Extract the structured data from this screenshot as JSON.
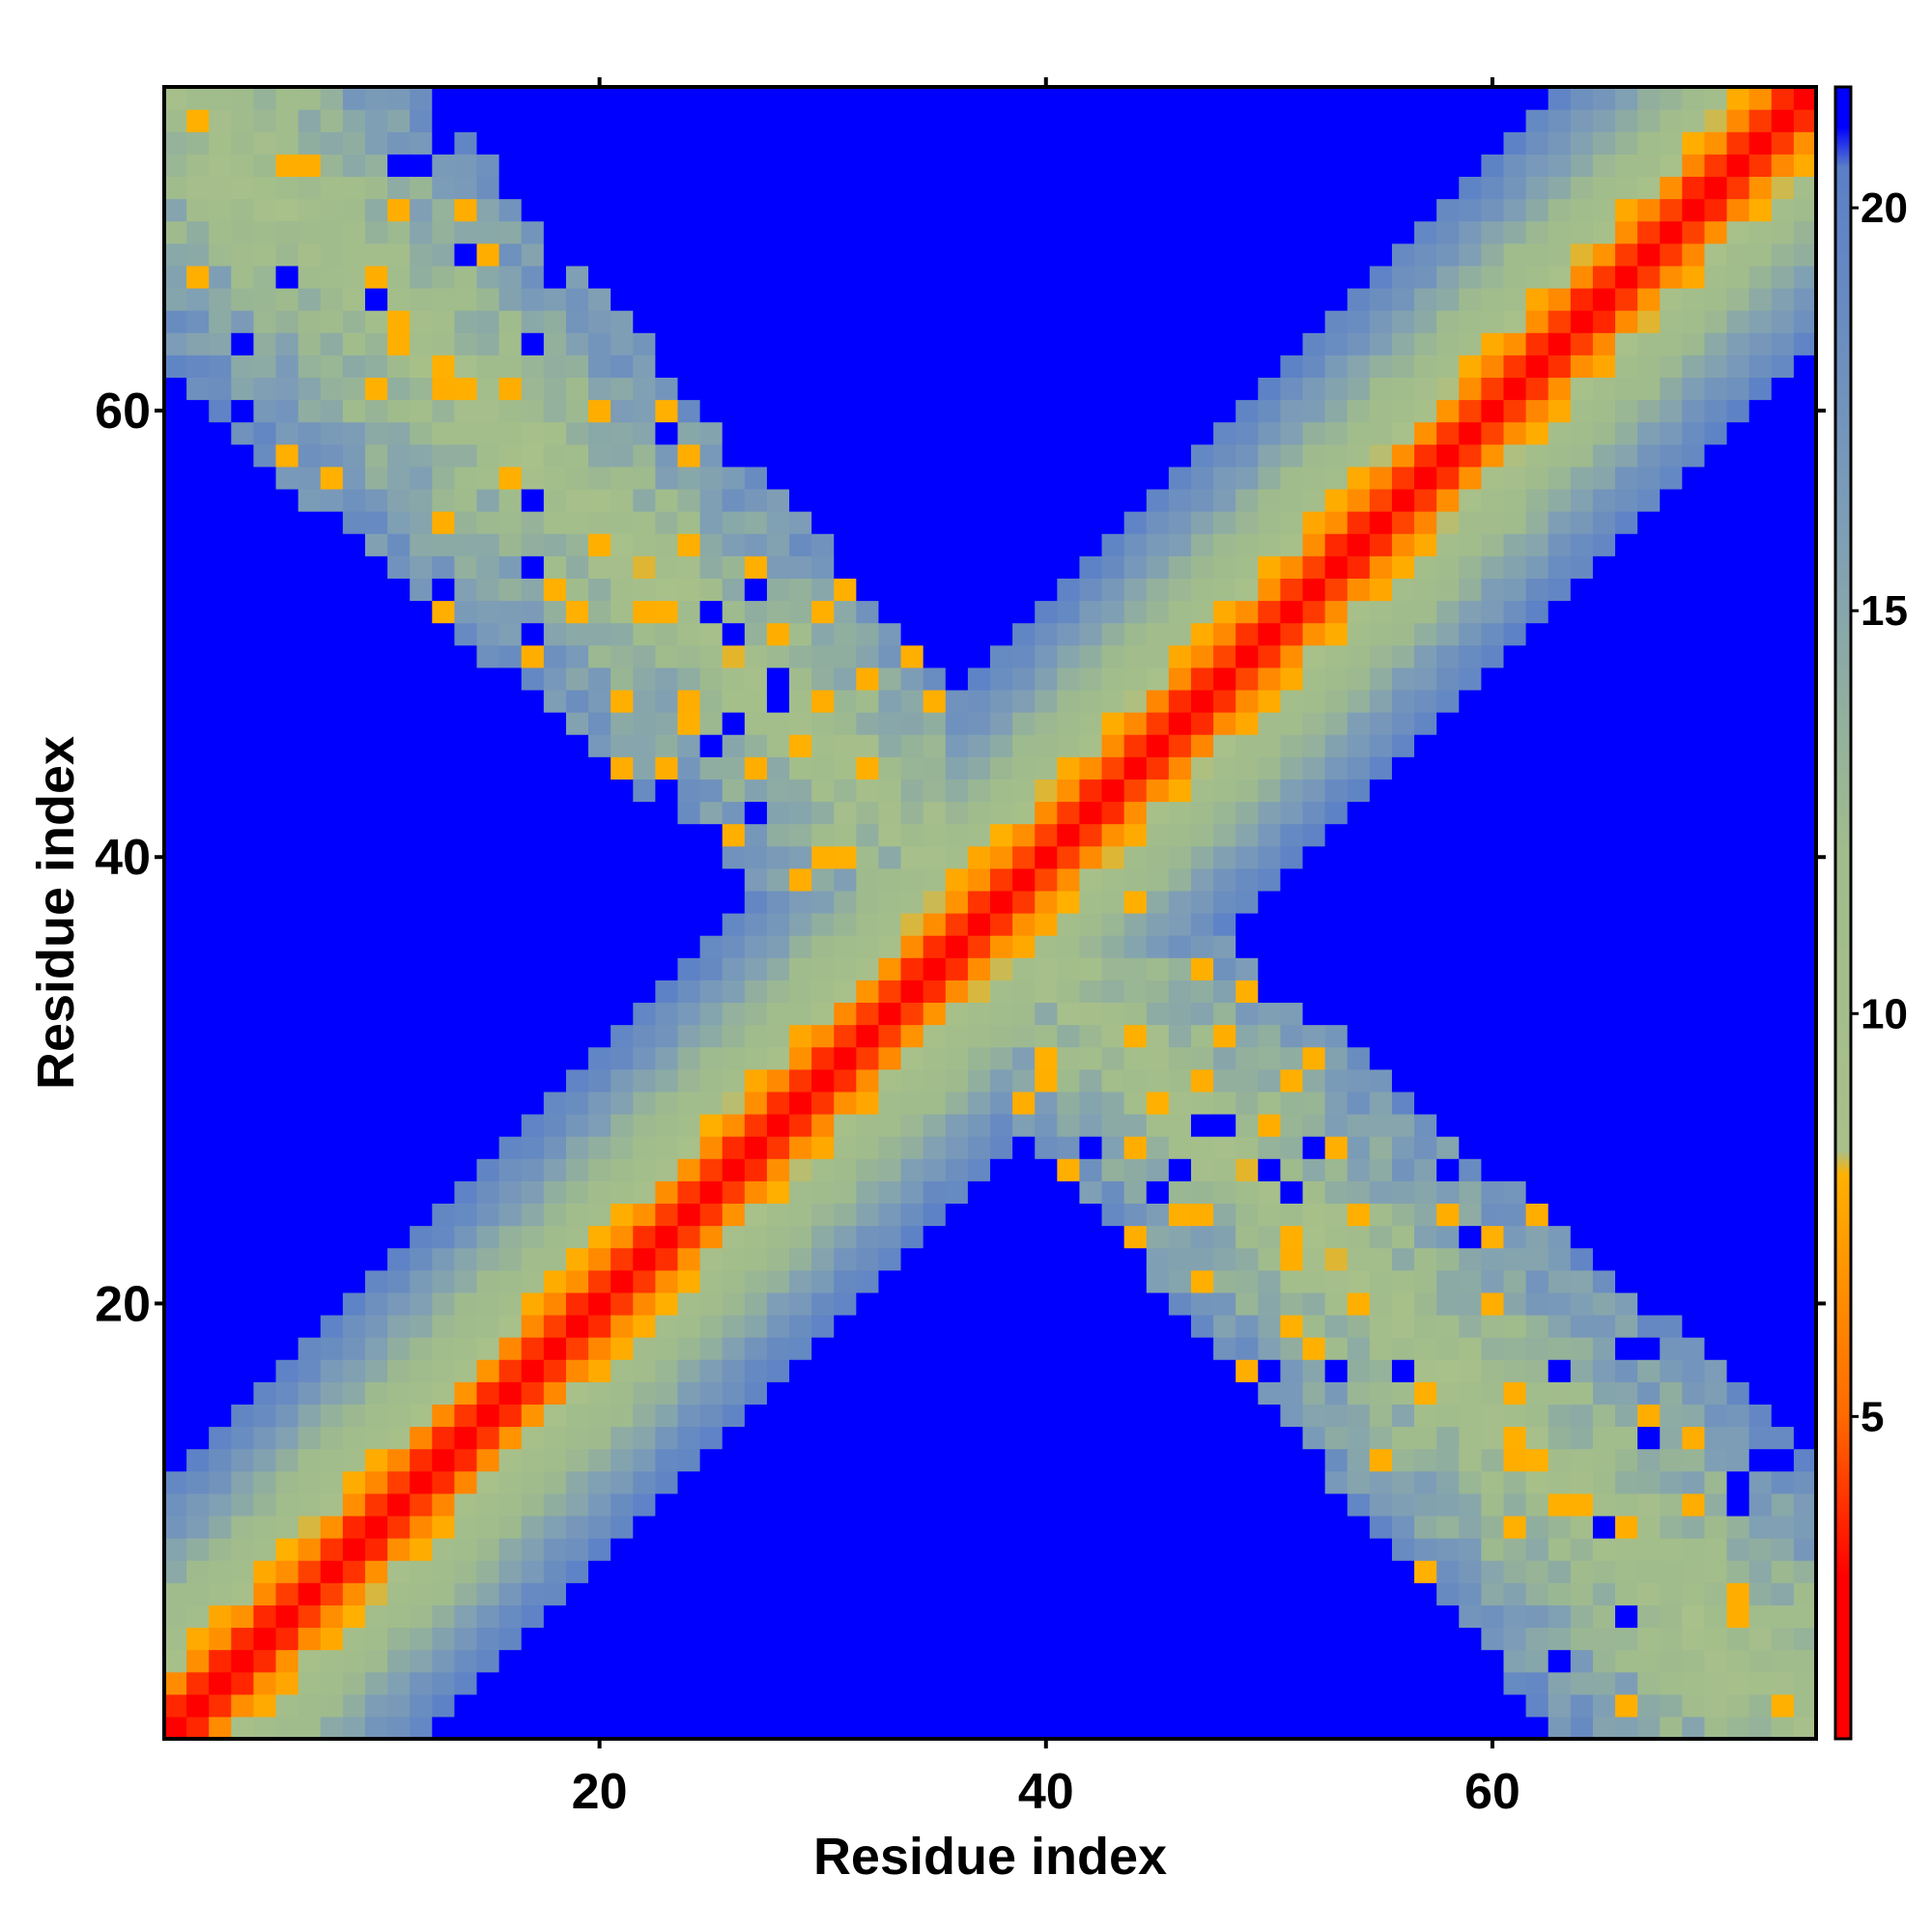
{
  "chart_data": {
    "type": "heatmap",
    "title": "",
    "xlabel": "Residue index",
    "ylabel": "Residue index",
    "n_residues": 74,
    "xlim": [
      1,
      74
    ],
    "ylim": [
      1,
      74
    ],
    "x_ticks": [
      20,
      40,
      60
    ],
    "y_ticks": [
      20,
      40,
      60
    ],
    "colorbar": {
      "range": [
        1,
        21.5
      ],
      "ticks": [
        5,
        10,
        15,
        20
      ],
      "stops": [
        {
          "value": 1,
          "color": "#ff0000"
        },
        {
          "value": 3,
          "color": "#ff0000"
        },
        {
          "value": 5,
          "color": "#ff6a00"
        },
        {
          "value": 8,
          "color": "#ffb000"
        },
        {
          "value": 8.3,
          "color": "#a8c08a"
        },
        {
          "value": 12,
          "color": "#a0bc8c"
        },
        {
          "value": 16,
          "color": "#7e9eb6"
        },
        {
          "value": 20.5,
          "color": "#5a7fc8"
        },
        {
          "value": 21,
          "color": "#0000ff"
        },
        {
          "value": 21.5,
          "color": "#0000ff"
        }
      ]
    },
    "description_of_values": {
      "diagonal_band": "distance grows with |i-j|: ~1 on diagonal, ~4 at |i-j|=1, ~6.5 at |i-j|=2, ~9 at |i-j|=3..4, increasing to ~18 at |i-j|=9..10, beyond ~21 (no contact) outside band",
      "antidiagonal_band": "second band centered on i+j≈75 spanning the whole map with values 8-19 and scattered orange contacts"
    },
    "out_of_range_value": 21.5
  }
}
